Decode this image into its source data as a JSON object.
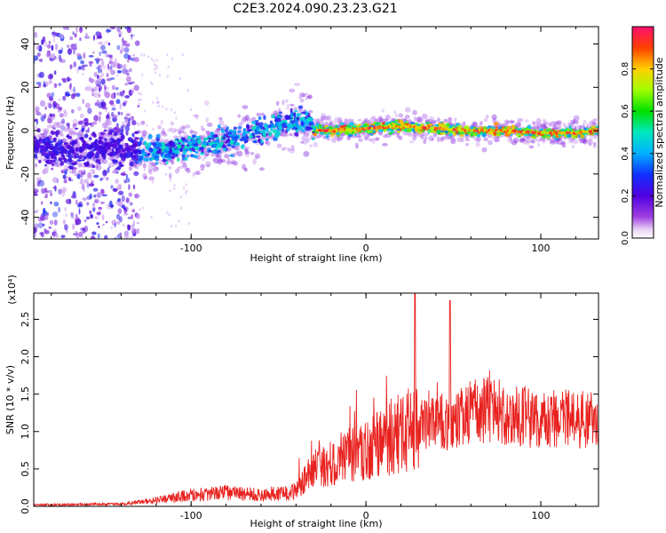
{
  "title": "C2E3.2024.090.23.23.G21",
  "chart_data": [
    {
      "type": "heatmap",
      "xlabel": "Height of straight line (km)",
      "ylabel": "Frequency (Hz)",
      "xlim": [
        -190,
        133
      ],
      "ylim": [
        -50,
        48
      ],
      "xticks": [
        -100,
        0,
        100
      ],
      "yticks": [
        -40,
        -20,
        0,
        20,
        40
      ],
      "colorbar": {
        "label": "Normalized spectral amplitude",
        "range": [
          0.0,
          1.0
        ],
        "ticks": [
          "0.0",
          "0.2",
          "0.4",
          "0.6",
          "0.8"
        ]
      },
      "trace": {
        "x": [
          -190,
          -160,
          -130,
          -110,
          -90,
          -70,
          -50,
          -35,
          -30,
          -20,
          0,
          20,
          40,
          60,
          80,
          100,
          120,
          133
        ],
        "y_center": [
          -8,
          -8,
          -9,
          -9,
          -6,
          -3,
          2,
          6,
          0,
          0,
          1,
          2,
          1,
          0,
          0,
          -1,
          -1,
          0
        ]
      }
    },
    {
      "type": "line",
      "xlabel": "Height of straight line (km)",
      "ylabel": "SNR (10 * v/v)",
      "y_multiplier": "(x10⁴)",
      "xlim": [
        -190,
        133
      ],
      "ylim": [
        0,
        2.85
      ],
      "xticks": [
        -100,
        0,
        100
      ],
      "yticks": [
        0.0,
        0.5,
        1.0,
        1.5,
        2.0,
        2.5
      ],
      "color": "#e8221f",
      "envelope": {
        "x": [
          -190,
          -140,
          -120,
          -100,
          -80,
          -60,
          -40,
          -30,
          -20,
          -10,
          0,
          10,
          20,
          30,
          40,
          50,
          60,
          70,
          80,
          90,
          100,
          110,
          120,
          133
        ],
        "y": [
          0.02,
          0.03,
          0.08,
          0.15,
          0.18,
          0.15,
          0.2,
          0.5,
          0.6,
          0.7,
          0.75,
          0.85,
          1.0,
          1.05,
          1.1,
          1.15,
          1.2,
          1.3,
          1.25,
          1.2,
          1.15,
          1.15,
          1.2,
          1.15
        ]
      },
      "peaks": [
        {
          "x": 28,
          "y": 2.85
        },
        {
          "x": 48,
          "y": 2.75
        }
      ]
    }
  ]
}
